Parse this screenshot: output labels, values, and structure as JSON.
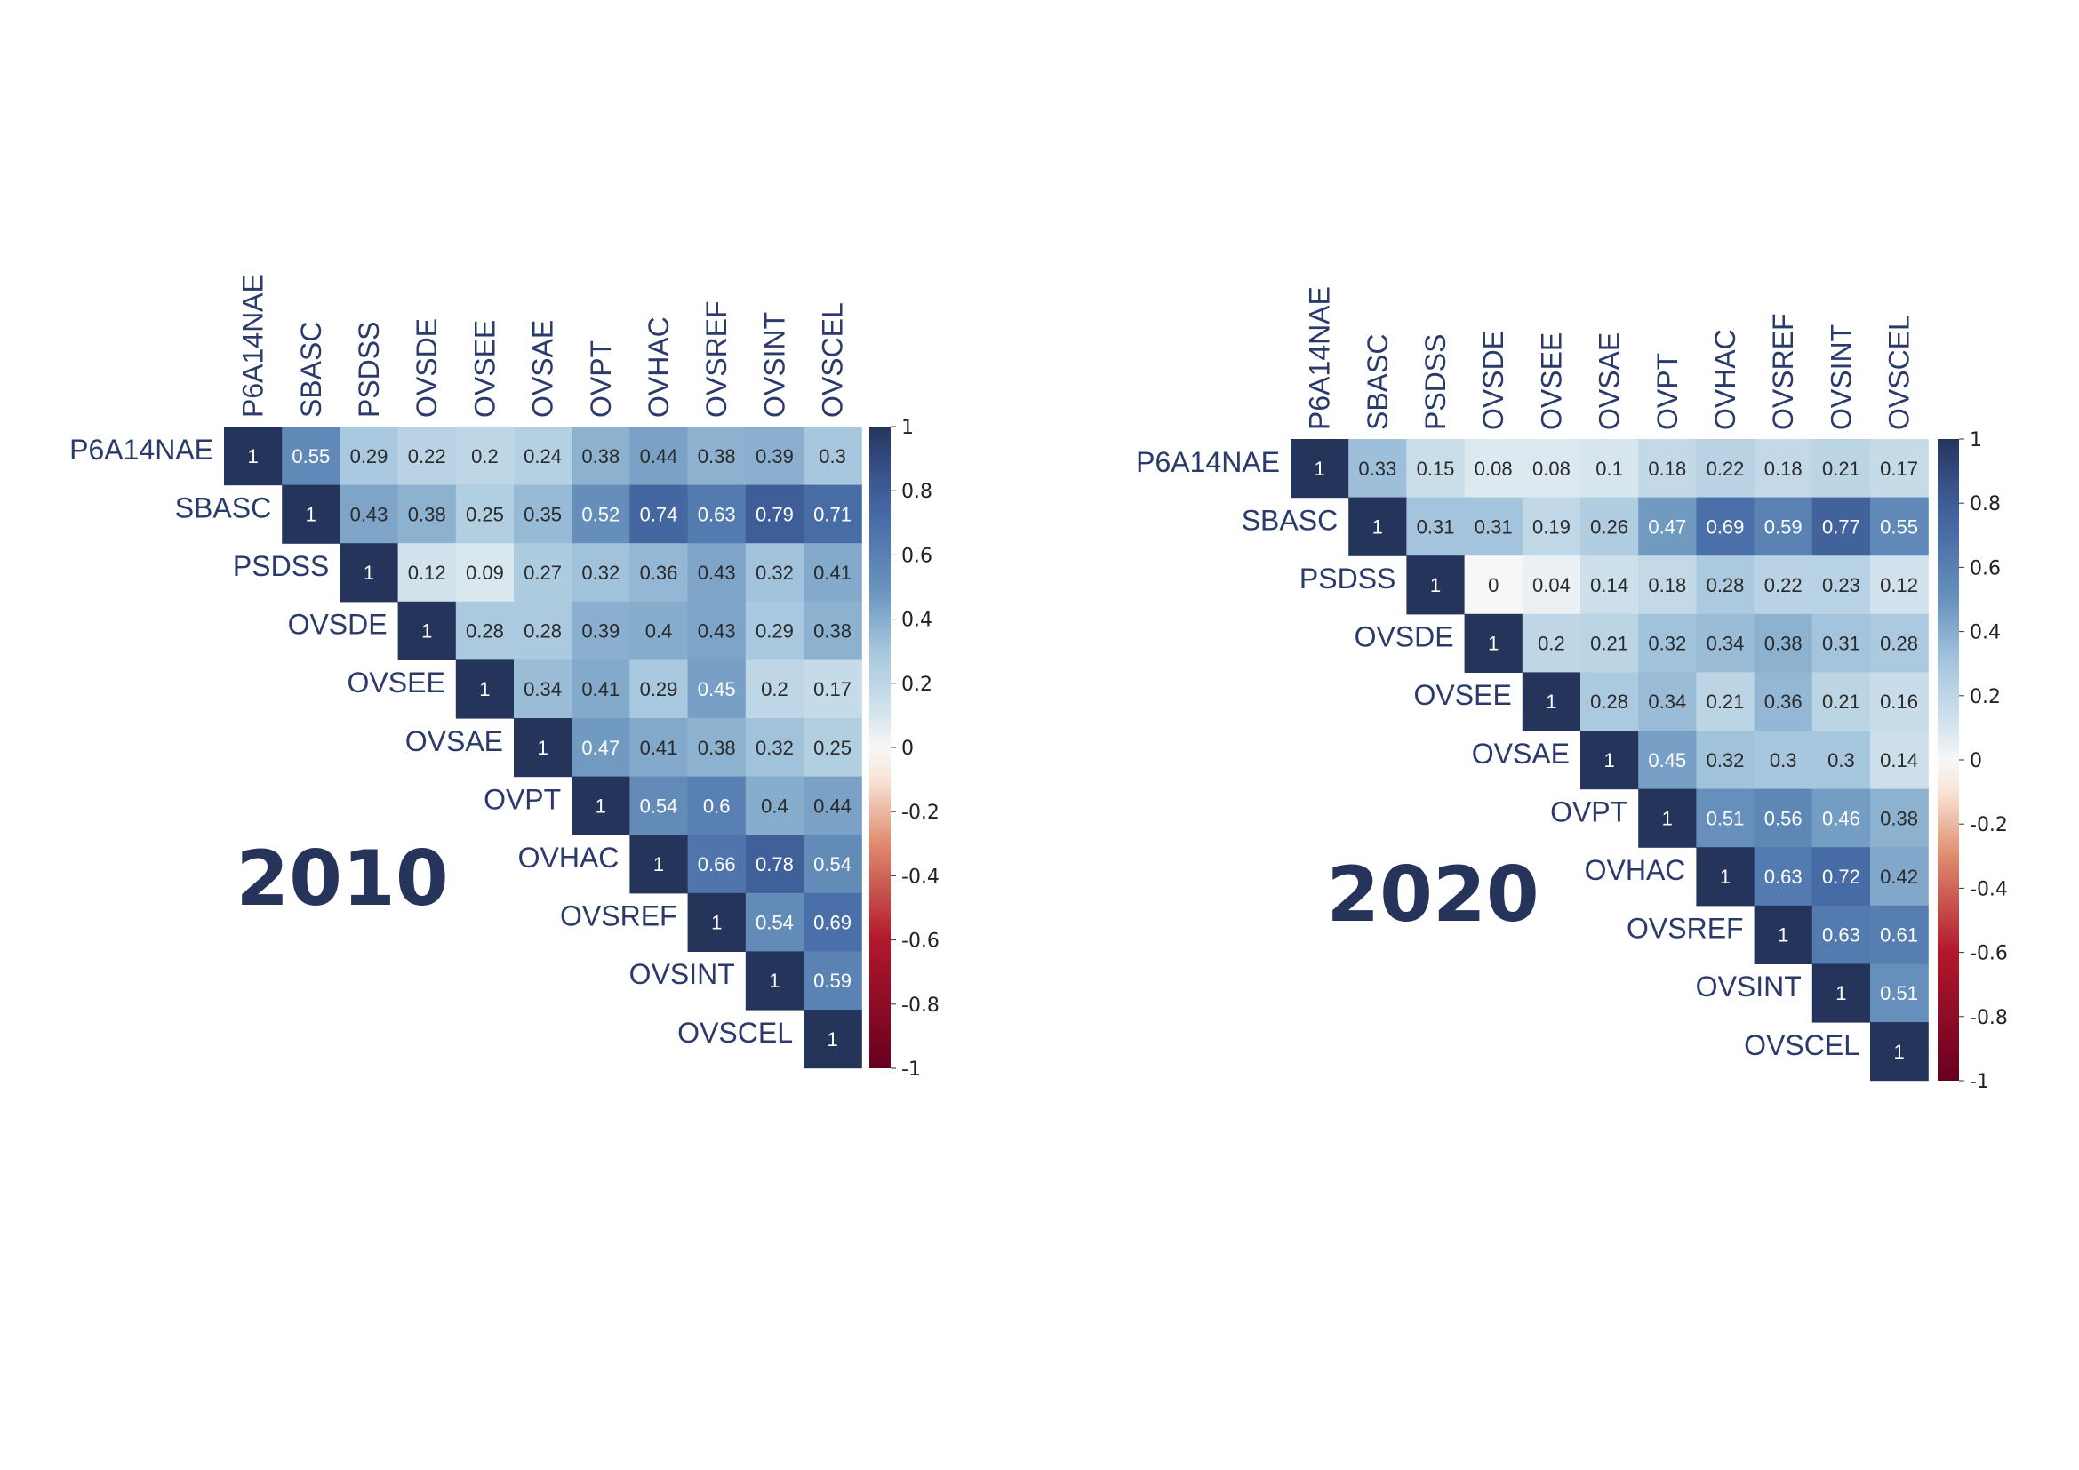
{
  "chart_data": [
    {
      "type": "heatmap",
      "title": "2010",
      "variables": [
        "P6A14NAE",
        "SBASC",
        "PSDSS",
        "OVSDE",
        "OVSEE",
        "OVSAE",
        "OVPT",
        "OVHAC",
        "OVSREF",
        "OVSINT",
        "OVSCEL"
      ],
      "values": [
        [
          1,
          0.55,
          0.29,
          0.22,
          0.2,
          0.24,
          0.38,
          0.44,
          0.38,
          0.39,
          0.3
        ],
        [
          1,
          0.43,
          0.38,
          0.25,
          0.35,
          0.52,
          0.74,
          0.63,
          0.79,
          0.71
        ],
        [
          1,
          0.12,
          0.09,
          0.27,
          0.32,
          0.36,
          0.43,
          0.32,
          0.41
        ],
        [
          1,
          0.28,
          0.28,
          0.39,
          0.4,
          0.43,
          0.29,
          0.38
        ],
        [
          1,
          0.34,
          0.41,
          0.29,
          0.45,
          0.2,
          0.17
        ],
        [
          1,
          0.47,
          0.41,
          0.38,
          0.32,
          0.25
        ],
        [
          1,
          0.54,
          0.6,
          0.4,
          0.44
        ],
        [
          1,
          0.66,
          0.78,
          0.54
        ],
        [
          1,
          0.54,
          0.69
        ],
        [
          1,
          0.59
        ],
        [
          1
        ]
      ],
      "layout": "upper-triangle",
      "colorbar": {
        "range": [
          -1,
          1
        ],
        "ticks": [
          "1",
          "0.8",
          "0.6",
          "0.4",
          "0.2",
          "0",
          "-0.2",
          "-0.4",
          "-0.6",
          "-0.8",
          "-1"
        ]
      },
      "grid": false
    },
    {
      "type": "heatmap",
      "title": "2020",
      "variables": [
        "P6A14NAE",
        "SBASC",
        "PSDSS",
        "OVSDE",
        "OVSEE",
        "OVSAE",
        "OVPT",
        "OVHAC",
        "OVSREF",
        "OVSINT",
        "OVSCEL"
      ],
      "values": [
        [
          1,
          0.33,
          0.15,
          0.08,
          0.08,
          0.1,
          0.18,
          0.22,
          0.18,
          0.21,
          0.17
        ],
        [
          1,
          0.31,
          0.31,
          0.19,
          0.26,
          0.47,
          0.69,
          0.59,
          0.77,
          0.55
        ],
        [
          1,
          0,
          0.04,
          0.14,
          0.18,
          0.28,
          0.22,
          0.23,
          0.12
        ],
        [
          1,
          0.2,
          0.21,
          0.32,
          0.34,
          0.38,
          0.31,
          0.28
        ],
        [
          1,
          0.28,
          0.34,
          0.21,
          0.36,
          0.21,
          0.16
        ],
        [
          1,
          0.45,
          0.32,
          0.3,
          0.3,
          0.14
        ],
        [
          1,
          0.51,
          0.56,
          0.46,
          0.38
        ],
        [
          1,
          0.63,
          0.72,
          0.42
        ],
        [
          1,
          0.63,
          0.61
        ],
        [
          1,
          0.51
        ],
        [
          1
        ]
      ],
      "layout": "upper-triangle",
      "colorbar": {
        "range": [
          -1,
          1
        ],
        "ticks": [
          "1",
          "0.8",
          "0.6",
          "0.4",
          "0.2",
          "0",
          "-0.2",
          "-0.4",
          "-0.6",
          "-0.8",
          "-1"
        ]
      },
      "grid": false
    }
  ],
  "colors": {
    "label": "#2a3a6b",
    "title": "#26345c",
    "scale": [
      "#67001f",
      "#b2182b",
      "#d6604d",
      "#f4a582",
      "#fddbc7",
      "#f7f7f7",
      "#d1e5f0",
      "#92c5de",
      "#4393c3",
      "#2166ac",
      "#053061"
    ]
  }
}
